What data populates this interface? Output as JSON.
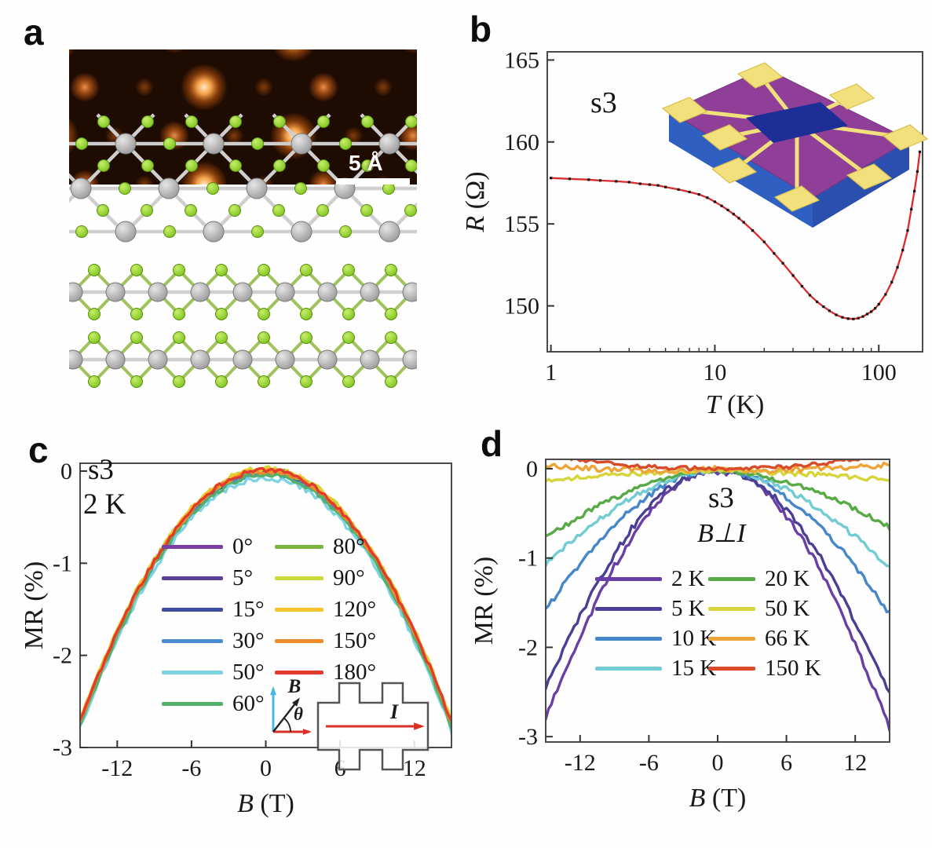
{
  "panels": {
    "a": {
      "label": "a",
      "scale_bar_label": "5 Å"
    },
    "b": {
      "label": "b"
    },
    "c": {
      "label": "c"
    },
    "d": {
      "label": "d"
    }
  },
  "insets": {
    "b_device": {
      "substrate_color": "#2f5fc0",
      "substrate_front_color": "#2a4fae",
      "surface_color": "#8f3f97",
      "flake_color": "#1d2e96",
      "electrode_color": "#f2e07c",
      "electrode_edge_color": "#d8c050"
    },
    "c_geometry": {
      "b_label": "B",
      "theta_label": "θ",
      "i_label": "I",
      "b_axis_color": "#45b8e6",
      "i_arrow_color": "#d93025",
      "outline_color": "#555555"
    },
    "a_structure": {
      "metal_atom_color": "#9a9a9a",
      "chalcogen_atom_color": "#7cc41e",
      "bond_color": "#cfcfcf"
    }
  },
  "chart_data": [
    {
      "panel": "b",
      "type": "scatter",
      "annotation": "s3",
      "xlabel": {
        "var": "T",
        "unit": " (K)",
        "italic": true
      },
      "ylabel": {
        "var": "R",
        "unit": " (Ω)",
        "italic": true
      },
      "xscale": "log",
      "xlim": [
        0.95,
        185
      ],
      "ylim": [
        147.2,
        165.5
      ],
      "xticks": [
        "1",
        "10",
        "100"
      ],
      "xtick_vals": [
        1,
        10,
        100
      ],
      "yticks": [
        "165",
        "160",
        "155",
        "150"
      ],
      "ytick_vals": [
        165,
        160,
        155,
        150
      ],
      "grid": false,
      "fit_line_color": "#d92b2b",
      "point_color": "#141414",
      "points_T": [
        1,
        1.3,
        1.7,
        2,
        2.5,
        3,
        3.5,
        4,
        4.5,
        5,
        6,
        7,
        8,
        9,
        10,
        11,
        12,
        13,
        14,
        15,
        17,
        20,
        23,
        26,
        30,
        34,
        38,
        42,
        46,
        50,
        55,
        60,
        65,
        70,
        75,
        80,
        85,
        90,
        95,
        100,
        110,
        120,
        130,
        140,
        150,
        158,
        165,
        172,
        178
      ],
      "points_R": [
        157.8,
        157.75,
        157.7,
        157.65,
        157.6,
        157.55,
        157.45,
        157.4,
        157.35,
        157.25,
        157.1,
        156.95,
        156.8,
        156.6,
        156.35,
        156.1,
        155.85,
        155.6,
        155.35,
        155.1,
        154.6,
        153.9,
        153.2,
        152.6,
        151.85,
        151.2,
        150.65,
        150.25,
        149.95,
        149.7,
        149.45,
        149.3,
        149.22,
        149.2,
        149.25,
        149.35,
        149.5,
        149.65,
        149.85,
        150.1,
        150.7,
        151.45,
        152.35,
        153.4,
        154.6,
        155.9,
        157.0,
        158.2,
        159.4
      ]
    },
    {
      "panel": "c",
      "type": "line",
      "annotations": [
        "s3",
        "2 K"
      ],
      "xlabel": {
        "var": "B",
        "unit": " (T)",
        "italic": true
      },
      "ylabel": {
        "var": "MR",
        "unit": " (%)",
        "italic": false
      },
      "xlim": [
        -15,
        15
      ],
      "ylim": [
        -3.0,
        0.085
      ],
      "xticks": [
        "-12",
        "-6",
        "0",
        "6",
        "12"
      ],
      "xtick_vals": [
        -12,
        -6,
        0,
        6,
        12
      ],
      "yticks": [
        "0",
        "-1",
        "-2",
        "-3"
      ],
      "ytick_vals": [
        0,
        -1,
        -2,
        -3
      ],
      "grid": false,
      "x": [
        -15,
        -13.5,
        -12,
        -10.5,
        -9,
        -7.5,
        -6,
        -4.5,
        -3,
        -1.5,
        0,
        1.5,
        3,
        4.5,
        6,
        7.5,
        9,
        10.5,
        12,
        13.5,
        15
      ],
      "base_values": [
        -2.72,
        -2.22,
        -1.76,
        -1.35,
        -0.99,
        -0.69,
        -0.44,
        -0.25,
        -0.11,
        -0.03,
        -0.01,
        -0.03,
        -0.11,
        -0.25,
        -0.44,
        -0.69,
        -0.99,
        -1.35,
        -1.76,
        -2.22,
        -2.75
      ],
      "series": [
        {
          "name": "0°",
          "color": "#7b3fa0",
          "delta": 0.0,
          "noise": 0.025
        },
        {
          "name": "5°",
          "color": "#5a4099",
          "delta": -0.01,
          "noise": 0.025
        },
        {
          "name": "15°",
          "color": "#3e4d9e",
          "delta": 0.01,
          "noise": 0.025
        },
        {
          "name": "30°",
          "color": "#4b8bd0",
          "delta": -0.02,
          "noise": 0.025
        },
        {
          "name": "50°",
          "color": "#7fd2e2",
          "delta": -0.07,
          "noise": 0.03
        },
        {
          "name": "60°",
          "color": "#52b06a",
          "delta": -0.03,
          "noise": 0.025
        },
        {
          "name": "80°",
          "color": "#79b541",
          "delta": 0.02,
          "noise": 0.025
        },
        {
          "name": "90°",
          "color": "#ccd938",
          "delta": 0.04,
          "noise": 0.025
        },
        {
          "name": "120°",
          "color": "#f3c32c",
          "delta": 0.03,
          "noise": 0.025
        },
        {
          "name": "150°",
          "color": "#ee8c2c",
          "delta": 0.01,
          "noise": 0.025
        },
        {
          "name": "180°",
          "color": "#e23a2c",
          "delta": 0.02,
          "noise": 0.025
        }
      ]
    },
    {
      "panel": "d",
      "type": "line",
      "annotations": [
        "s3",
        "B⊥I"
      ],
      "xlabel": {
        "var": "B",
        "unit": " (T)",
        "italic": true
      },
      "ylabel": {
        "var": "MR",
        "unit": " (%)",
        "italic": false
      },
      "xlim": [
        -15,
        15
      ],
      "ylim": [
        -3.06,
        0.105
      ],
      "xticks": [
        "-12",
        "-6",
        "0",
        "6",
        "12"
      ],
      "xtick_vals": [
        -12,
        -6,
        0,
        6,
        12
      ],
      "yticks": [
        "0",
        "-1",
        "-2",
        "-3"
      ],
      "ytick_vals": [
        0,
        -1,
        -2,
        -3
      ],
      "grid": false,
      "x": [
        -15,
        -13.5,
        -12,
        -10.5,
        -9,
        -7.5,
        -6,
        -4.5,
        -3,
        -1.5,
        0,
        1.5,
        3,
        4.5,
        6,
        7.5,
        9,
        10.5,
        12,
        13.5,
        15
      ],
      "series": [
        {
          "name": "2 K",
          "color": "#6a3fa5",
          "noise": 0.035,
          "values": [
            -2.78,
            -2.32,
            -1.88,
            -1.46,
            -1.09,
            -0.77,
            -0.5,
            -0.28,
            -0.13,
            -0.05,
            -0.03,
            -0.05,
            -0.14,
            -0.3,
            -0.53,
            -0.81,
            -1.14,
            -1.53,
            -1.96,
            -2.43,
            -2.9
          ]
        },
        {
          "name": "5 K",
          "color": "#4a3f94",
          "noise": 0.035,
          "values": [
            -2.45,
            -2.05,
            -1.65,
            -1.29,
            -0.96,
            -0.67,
            -0.43,
            -0.24,
            -0.11,
            -0.04,
            -0.02,
            -0.04,
            -0.12,
            -0.26,
            -0.46,
            -0.71,
            -1.0,
            -1.34,
            -1.72,
            -2.13,
            -2.52
          ]
        },
        {
          "name": "10 K",
          "color": "#4687c9",
          "noise": 0.03,
          "values": [
            -1.58,
            -1.31,
            -1.06,
            -0.83,
            -0.63,
            -0.45,
            -0.3,
            -0.17,
            -0.08,
            -0.03,
            -0.02,
            -0.03,
            -0.09,
            -0.18,
            -0.32,
            -0.47,
            -0.65,
            -0.86,
            -1.09,
            -1.35,
            -1.62
          ]
        },
        {
          "name": "15 K",
          "color": "#72ccd4",
          "noise": 0.03,
          "values": [
            -1.06,
            -0.89,
            -0.73,
            -0.58,
            -0.45,
            -0.33,
            -0.22,
            -0.14,
            -0.07,
            -0.03,
            -0.02,
            -0.03,
            -0.07,
            -0.14,
            -0.23,
            -0.34,
            -0.47,
            -0.61,
            -0.76,
            -0.93,
            -1.1
          ]
        },
        {
          "name": "20 K",
          "color": "#57aa45",
          "noise": 0.028,
          "values": [
            -0.78,
            -0.65,
            -0.53,
            -0.42,
            -0.33,
            -0.24,
            -0.17,
            -0.11,
            -0.06,
            -0.03,
            -0.02,
            -0.03,
            -0.06,
            -0.1,
            -0.15,
            -0.21,
            -0.28,
            -0.36,
            -0.45,
            -0.55,
            -0.66
          ]
        },
        {
          "name": "50 K",
          "color": "#d6d53c",
          "noise": 0.025,
          "values": [
            -0.13,
            -0.11,
            -0.1,
            -0.08,
            -0.07,
            -0.06,
            -0.05,
            -0.04,
            -0.03,
            -0.02,
            -0.02,
            -0.02,
            -0.03,
            -0.04,
            -0.05,
            -0.06,
            -0.07,
            -0.08,
            -0.1,
            -0.11,
            -0.12
          ]
        },
        {
          "name": "66 K",
          "color": "#eda53a",
          "noise": 0.03,
          "values": [
            0.04,
            0.02,
            0.01,
            0.0,
            -0.01,
            -0.01,
            -0.02,
            -0.02,
            -0.02,
            -0.01,
            0.0,
            -0.01,
            -0.02,
            -0.02,
            -0.01,
            -0.01,
            0.0,
            0.01,
            0.02,
            0.03,
            0.05
          ]
        },
        {
          "name": "150 K",
          "color": "#d94b28",
          "noise": 0.022,
          "values": [
            0.18,
            0.14,
            0.1,
            0.07,
            0.05,
            0.03,
            0.02,
            0.01,
            0.01,
            0.0,
            0.0,
            0.0,
            0.01,
            0.01,
            0.02,
            0.04,
            0.06,
            0.08,
            0.11,
            0.13,
            0.16
          ]
        }
      ]
    }
  ]
}
